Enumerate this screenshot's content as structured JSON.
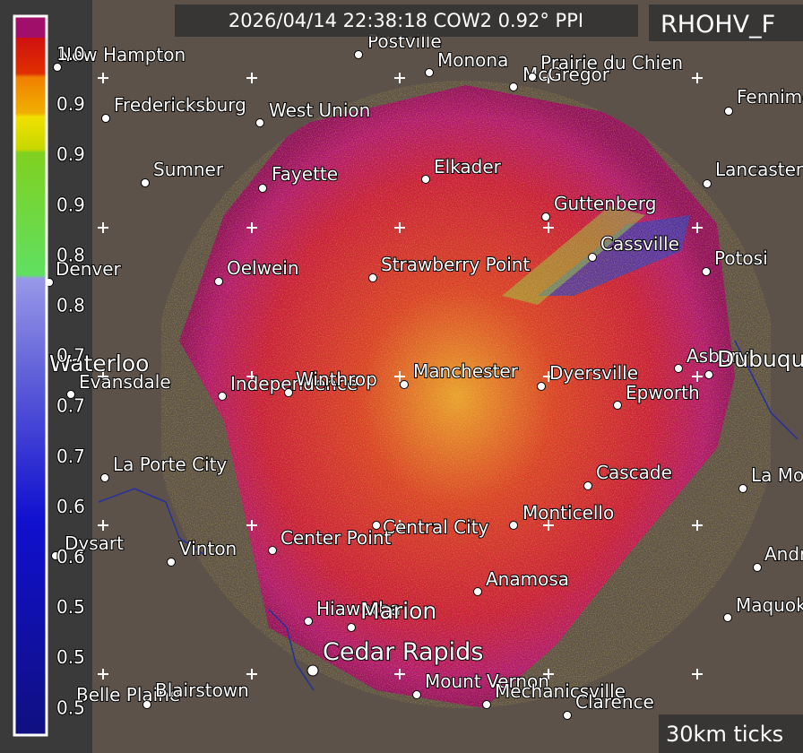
{
  "header": {
    "title": "2026/04/14 22:38:18 COW2 0.92° PPI",
    "product": "RHOHV_F",
    "scale_note": "30km ticks"
  },
  "colorbar": {
    "labels": [
      "1.0",
      "0.9",
      "0.9",
      "0.9",
      "0.8",
      "0.8",
      "0.7",
      "0.7",
      "0.7",
      "0.6",
      "0.6",
      "0.5",
      "0.5",
      "0.5"
    ]
  },
  "cities": [
    {
      "label": "New Hampton"
    },
    {
      "label": "Postville"
    },
    {
      "label": "Monona"
    },
    {
      "label": "McGregor"
    },
    {
      "label": "Prairie du Chien"
    },
    {
      "label": "Fennimore"
    },
    {
      "label": "Fredericksburg"
    },
    {
      "label": "West Union"
    },
    {
      "label": "Sumner"
    },
    {
      "label": "Fayette"
    },
    {
      "label": "Elkader"
    },
    {
      "label": "Lancaster"
    },
    {
      "label": "Guttenberg"
    },
    {
      "label": "Cassville"
    },
    {
      "label": "Potosi"
    },
    {
      "label": "Denver"
    },
    {
      "label": "Oelwein"
    },
    {
      "label": "Strawberry Point"
    },
    {
      "label": "Waterloo"
    },
    {
      "label": "Evansdale"
    },
    {
      "label": "Independence"
    },
    {
      "label": "Winthrop"
    },
    {
      "label": "Manchester"
    },
    {
      "label": "Dyersville"
    },
    {
      "label": "Asbury"
    },
    {
      "label": "Dubuque"
    },
    {
      "label": "Epworth"
    },
    {
      "label": "La Porte City"
    },
    {
      "label": "Cascade"
    },
    {
      "label": "La Motte"
    },
    {
      "label": "Central City"
    },
    {
      "label": "Monticello"
    },
    {
      "label": "Dysart"
    },
    {
      "label": "Vinton"
    },
    {
      "label": "Center Point"
    },
    {
      "label": "Andrew"
    },
    {
      "label": "Anamosa"
    },
    {
      "label": "Maquoketa"
    },
    {
      "label": "Hiawatha"
    },
    {
      "label": "Marion"
    },
    {
      "label": "Cedar Rapids"
    },
    {
      "label": "Mount Vernon"
    },
    {
      "label": "Mechanicsville"
    },
    {
      "label": "Clarence"
    },
    {
      "label": "Belle Plaine"
    },
    {
      "label": "Blairstown"
    }
  ]
}
